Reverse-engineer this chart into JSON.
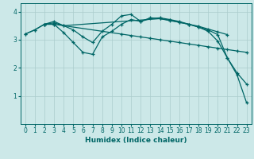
{
  "xlabel": "Humidex (Indice chaleur)",
  "ylabel": "",
  "bg_color": "#cce8e8",
  "line_color": "#006666",
  "grid_color": "#aacccc",
  "xlim": [
    -0.5,
    23.5
  ],
  "ylim": [
    0,
    4.3
  ],
  "yticks": [
    1,
    2,
    3,
    4
  ],
  "xticks": [
    0,
    1,
    2,
    3,
    4,
    5,
    6,
    7,
    8,
    9,
    10,
    11,
    12,
    13,
    14,
    15,
    16,
    17,
    18,
    19,
    20,
    21,
    22,
    23
  ],
  "lines": [
    {
      "x": [
        0,
        1,
        2,
        3,
        10,
        11,
        12,
        13,
        14,
        15,
        16,
        17,
        18,
        19,
        20,
        21,
        22,
        23
      ],
      "y": [
        3.2,
        3.35,
        3.55,
        3.55,
        3.2,
        3.15,
        3.1,
        3.05,
        3.0,
        2.95,
        2.9,
        2.85,
        2.8,
        2.75,
        2.7,
        2.65,
        2.6,
        2.55
      ]
    },
    {
      "x": [
        0,
        1,
        2,
        3,
        4,
        5,
        6,
        7,
        8,
        9,
        10,
        11,
        12,
        13,
        14,
        15,
        16,
        17,
        18,
        19,
        20,
        21
      ],
      "y": [
        3.2,
        3.35,
        3.55,
        3.55,
        3.25,
        2.9,
        2.55,
        2.48,
        3.1,
        3.3,
        3.55,
        3.72,
        3.65,
        3.78,
        3.75,
        3.68,
        3.62,
        3.55,
        3.48,
        3.38,
        3.28,
        3.18
      ]
    },
    {
      "x": [
        2,
        3,
        4,
        5,
        6,
        7,
        8,
        9,
        10,
        11,
        12,
        13,
        14,
        15,
        16,
        17,
        18,
        19,
        20,
        21,
        22,
        23
      ],
      "y": [
        3.55,
        3.65,
        3.5,
        3.35,
        3.1,
        2.9,
        3.3,
        3.55,
        3.85,
        3.9,
        3.65,
        3.75,
        3.78,
        3.72,
        3.65,
        3.55,
        3.45,
        3.3,
        2.95,
        2.35,
        1.82,
        1.42
      ]
    },
    {
      "x": [
        2,
        3,
        4,
        14,
        15,
        16,
        17,
        18,
        19,
        20,
        21,
        22,
        23
      ],
      "y": [
        3.55,
        3.6,
        3.5,
        3.75,
        3.7,
        3.62,
        3.55,
        3.45,
        3.35,
        3.18,
        2.35,
        1.75,
        0.75
      ]
    }
  ]
}
